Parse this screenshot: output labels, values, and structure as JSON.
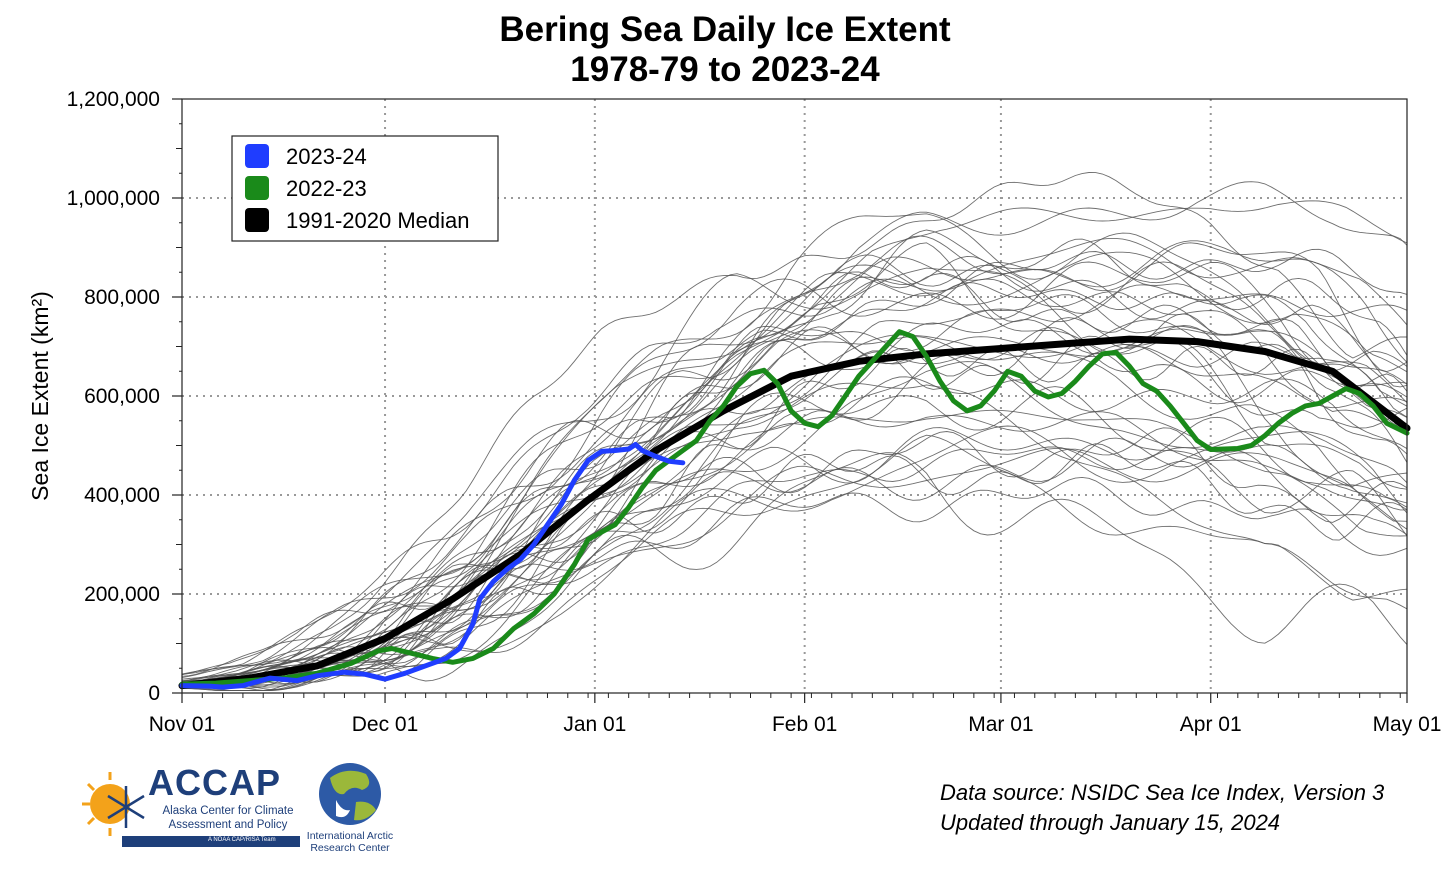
{
  "title": {
    "line1": "Bering Sea Daily Ice Extent",
    "line2": "1978-79 to 2023-24"
  },
  "source": {
    "line1": "Data source: NSIDC Sea Ice Index, Version 3",
    "line2": "Updated through January 15, 2024"
  },
  "logos": {
    "accap_name": "ACCAP",
    "accap_subtitle": "Alaska Center for Climate Assessment and Policy",
    "accap_bar": "A NOAA CAP/RISA Team",
    "iarc_text": "International Arctic Research Center"
  },
  "chart_data": {
    "type": "line",
    "ylabel": "Sea Ice Extent (km²)",
    "xlabel": "",
    "ylim": [
      0,
      1200000
    ],
    "xlim": [
      0,
      181
    ],
    "yticks": [
      0,
      200000,
      400000,
      600000,
      800000,
      1000000,
      1200000
    ],
    "ytick_labels": [
      "0",
      "200,000",
      "400,000",
      "600,000",
      "800,000",
      "1,000,000",
      "1,200,000"
    ],
    "xticks": [
      0,
      30,
      61,
      92,
      121,
      152,
      181
    ],
    "xtick_labels": [
      "Nov 01",
      "Dec 01",
      "Jan 01",
      "Feb 01",
      "Mar 01",
      "Apr 01",
      "May 01"
    ],
    "grid": "dotted",
    "legend_position": "top-left",
    "colors": {
      "series_2023_24": "#1f3dff",
      "series_2022_23": "#1a8a1a",
      "median": "#000000",
      "historical": "#555555"
    },
    "series": [
      {
        "name": "2023-24",
        "color": "#1f3dff",
        "points": [
          [
            0,
            15000
          ],
          [
            4,
            14000
          ],
          [
            6,
            12000
          ],
          [
            9,
            15000
          ],
          [
            13,
            30000
          ],
          [
            17,
            25000
          ],
          [
            20,
            35000
          ],
          [
            24,
            42000
          ],
          [
            27,
            38000
          ],
          [
            30,
            28000
          ],
          [
            33,
            40000
          ],
          [
            36,
            55000
          ],
          [
            39,
            70000
          ],
          [
            41,
            90000
          ],
          [
            43,
            140000
          ],
          [
            44,
            190000
          ],
          [
            46,
            225000
          ],
          [
            48,
            250000
          ],
          [
            50,
            270000
          ],
          [
            52,
            300000
          ],
          [
            54,
            340000
          ],
          [
            56,
            380000
          ],
          [
            58,
            430000
          ],
          [
            60,
            470000
          ],
          [
            62,
            488000
          ],
          [
            64,
            490000
          ],
          [
            66,
            493000
          ],
          [
            67,
            502000
          ],
          [
            68,
            490000
          ],
          [
            70,
            478000
          ],
          [
            72,
            468000
          ],
          [
            74,
            465000
          ]
        ]
      },
      {
        "name": "2022-23",
        "color": "#1a8a1a",
        "points": [
          [
            0,
            18000
          ],
          [
            5,
            20000
          ],
          [
            10,
            25000
          ],
          [
            15,
            30000
          ],
          [
            20,
            40000
          ],
          [
            25,
            60000
          ],
          [
            29,
            85000
          ],
          [
            31,
            90000
          ],
          [
            34,
            80000
          ],
          [
            37,
            70000
          ],
          [
            40,
            62000
          ],
          [
            43,
            70000
          ],
          [
            46,
            90000
          ],
          [
            49,
            130000
          ],
          [
            52,
            160000
          ],
          [
            55,
            200000
          ],
          [
            58,
            260000
          ],
          [
            60,
            310000
          ],
          [
            62,
            325000
          ],
          [
            64,
            340000
          ],
          [
            66,
            375000
          ],
          [
            68,
            415000
          ],
          [
            70,
            450000
          ],
          [
            72,
            470000
          ],
          [
            74,
            490000
          ],
          [
            76,
            510000
          ],
          [
            78,
            550000
          ],
          [
            80,
            580000
          ],
          [
            82,
            620000
          ],
          [
            84,
            645000
          ],
          [
            86,
            652000
          ],
          [
            88,
            625000
          ],
          [
            90,
            570000
          ],
          [
            92,
            545000
          ],
          [
            94,
            538000
          ],
          [
            96,
            560000
          ],
          [
            98,
            600000
          ],
          [
            100,
            640000
          ],
          [
            102,
            670000
          ],
          [
            104,
            700000
          ],
          [
            106,
            730000
          ],
          [
            108,
            720000
          ],
          [
            110,
            680000
          ],
          [
            112,
            630000
          ],
          [
            114,
            590000
          ],
          [
            116,
            570000
          ],
          [
            118,
            580000
          ],
          [
            120,
            610000
          ],
          [
            122,
            650000
          ],
          [
            124,
            640000
          ],
          [
            126,
            610000
          ],
          [
            128,
            598000
          ],
          [
            130,
            605000
          ],
          [
            132,
            630000
          ],
          [
            134,
            660000
          ],
          [
            136,
            685000
          ],
          [
            138,
            688000
          ],
          [
            140,
            660000
          ],
          [
            142,
            625000
          ],
          [
            144,
            610000
          ],
          [
            146,
            580000
          ],
          [
            148,
            545000
          ],
          [
            150,
            510000
          ],
          [
            152,
            492000
          ],
          [
            156,
            494000
          ],
          [
            158,
            500000
          ],
          [
            160,
            520000
          ],
          [
            162,
            545000
          ],
          [
            164,
            565000
          ],
          [
            166,
            580000
          ],
          [
            168,
            585000
          ],
          [
            170,
            600000
          ],
          [
            172,
            615000
          ],
          [
            174,
            605000
          ],
          [
            176,
            580000
          ],
          [
            178,
            545000
          ],
          [
            181,
            525000
          ]
        ]
      },
      {
        "name": "1991-2020 Median",
        "color": "#000000",
        "points": [
          [
            0,
            15000
          ],
          [
            10,
            30000
          ],
          [
            20,
            55000
          ],
          [
            30,
            110000
          ],
          [
            40,
            190000
          ],
          [
            50,
            280000
          ],
          [
            60,
            390000
          ],
          [
            70,
            490000
          ],
          [
            80,
            570000
          ],
          [
            90,
            640000
          ],
          [
            100,
            670000
          ],
          [
            110,
            685000
          ],
          [
            120,
            695000
          ],
          [
            130,
            705000
          ],
          [
            140,
            715000
          ],
          [
            150,
            710000
          ],
          [
            160,
            690000
          ],
          [
            170,
            650000
          ],
          [
            181,
            535000
          ]
        ]
      }
    ]
  }
}
